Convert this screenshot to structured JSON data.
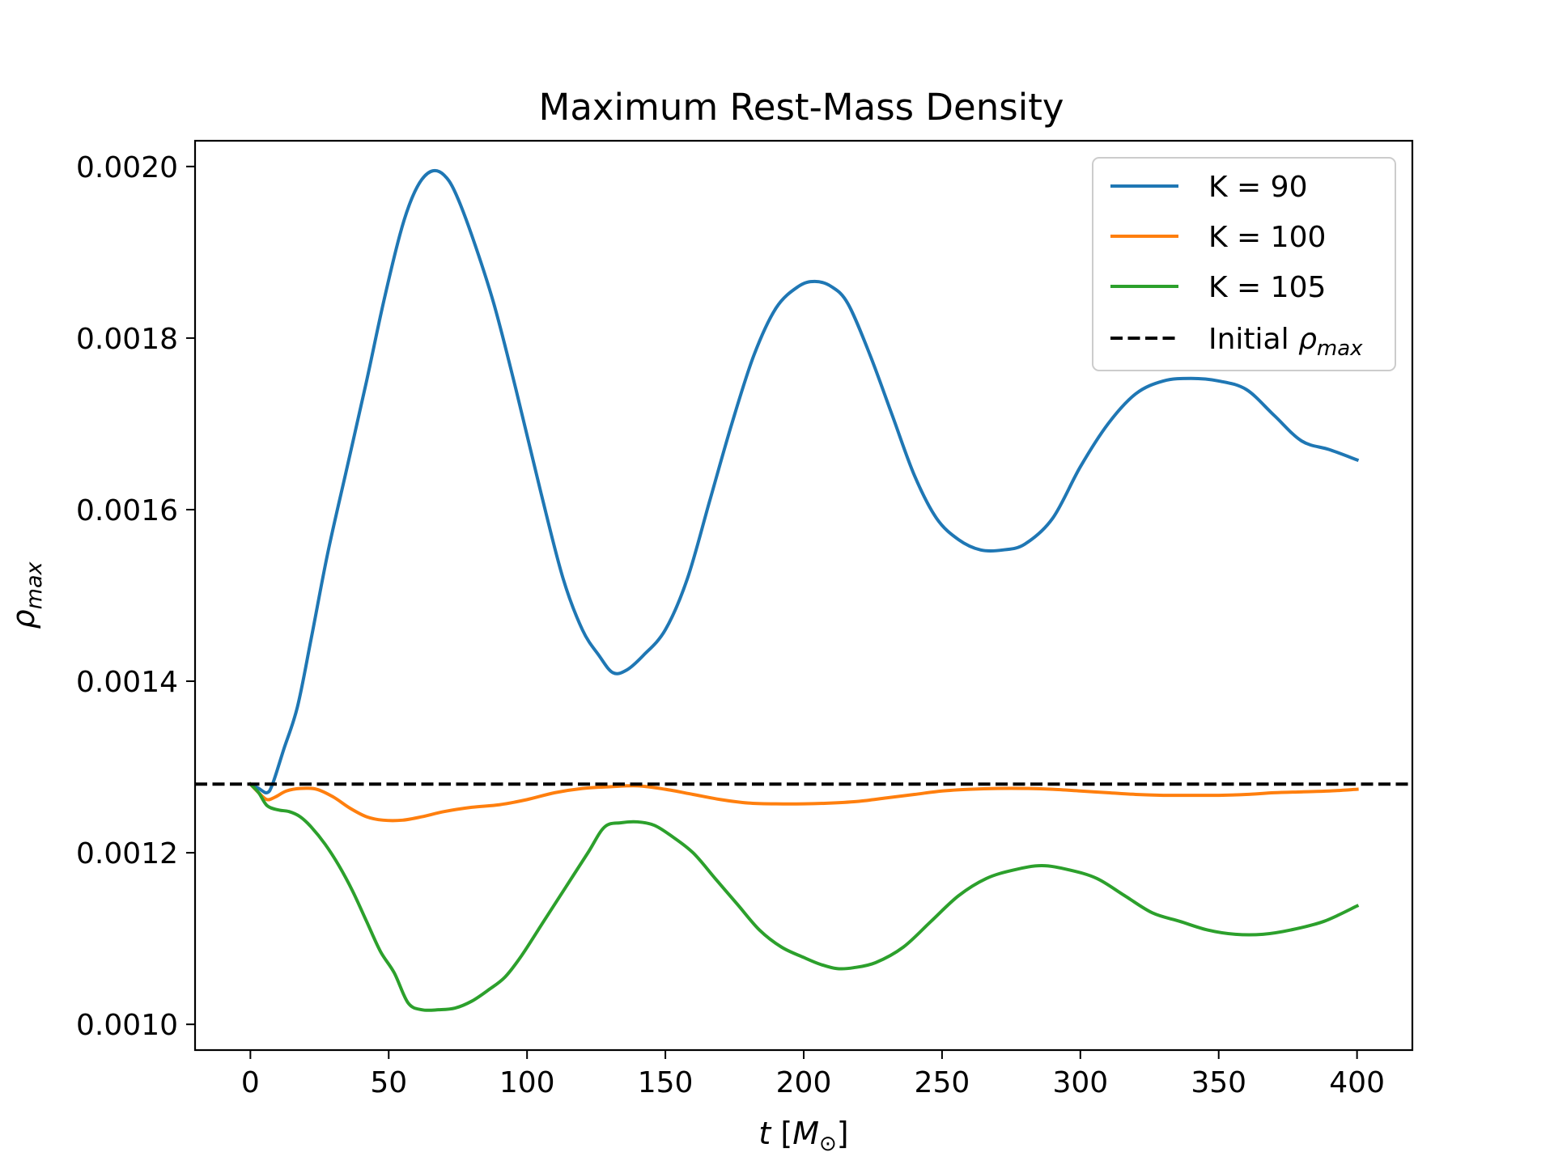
{
  "chart_data": {
    "type": "line",
    "title": "Maximum Rest-Mass Density",
    "xlabel": {
      "main": "t",
      "unit_open": " [",
      "unit_symbol": "M",
      "unit_sub": "⊙",
      "unit_close": "]"
    },
    "ylabel": {
      "symbol": "ρ",
      "subscript": "max"
    },
    "xlim": [
      -20,
      420
    ],
    "ylim": [
      0.00097,
      0.00203
    ],
    "x_ticks": [
      0,
      50,
      100,
      150,
      200,
      250,
      300,
      350,
      400
    ],
    "x_tick_labels": [
      "0",
      "50",
      "100",
      "150",
      "200",
      "250",
      "300",
      "350",
      "400"
    ],
    "y_ticks": [
      0.001,
      0.0012,
      0.0014,
      0.0016,
      0.0018,
      0.002
    ],
    "y_tick_labels": [
      "0.0010",
      "0.0012",
      "0.0014",
      "0.0016",
      "0.0018",
      "0.0020"
    ],
    "grid": false,
    "legend_position": "top-right",
    "series": [
      {
        "name": "K = 90",
        "color": "#1f77b4",
        "style": "solid",
        "points": [
          [
            0,
            0.00128
          ],
          [
            3,
            0.001275
          ],
          [
            6,
            0.00127
          ],
          [
            8,
            0.00128
          ],
          [
            12,
            0.00132
          ],
          [
            17,
            0.00137
          ],
          [
            22,
            0.00145
          ],
          [
            28,
            0.00155
          ],
          [
            35,
            0.00165
          ],
          [
            42,
            0.00175
          ],
          [
            48,
            0.00184
          ],
          [
            54,
            0.00192
          ],
          [
            58,
            0.00196
          ],
          [
            62,
            0.001985
          ],
          [
            66,
            0.001995
          ],
          [
            70,
            0.00199
          ],
          [
            74,
            0.00197
          ],
          [
            80,
            0.00192
          ],
          [
            88,
            0.00184
          ],
          [
            96,
            0.00174
          ],
          [
            105,
            0.00162
          ],
          [
            113,
            0.00152
          ],
          [
            120,
            0.00146
          ],
          [
            126,
            0.00143
          ],
          [
            131,
            0.00141
          ],
          [
            136,
            0.001413
          ],
          [
            142,
            0.00143
          ],
          [
            150,
            0.00146
          ],
          [
            158,
            0.00152
          ],
          [
            166,
            0.00161
          ],
          [
            174,
            0.0017
          ],
          [
            182,
            0.00178
          ],
          [
            190,
            0.001835
          ],
          [
            198,
            0.00186
          ],
          [
            204,
            0.001866
          ],
          [
            210,
            0.00186
          ],
          [
            216,
            0.00184
          ],
          [
            224,
            0.00178
          ],
          [
            232,
            0.00171
          ],
          [
            240,
            0.00164
          ],
          [
            248,
            0.00159
          ],
          [
            256,
            0.001565
          ],
          [
            264,
            0.001553
          ],
          [
            272,
            0.001553
          ],
          [
            280,
            0.00156
          ],
          [
            290,
            0.00159
          ],
          [
            300,
            0.00165
          ],
          [
            310,
            0.0017
          ],
          [
            320,
            0.001735
          ],
          [
            330,
            0.00175
          ],
          [
            340,
            0.001753
          ],
          [
            350,
            0.00175
          ],
          [
            360,
            0.00174
          ],
          [
            370,
            0.00171
          ],
          [
            380,
            0.00168
          ],
          [
            390,
            0.00167
          ],
          [
            400,
            0.001658
          ]
        ]
      },
      {
        "name": "K = 100",
        "color": "#ff7f0e",
        "style": "solid",
        "points": [
          [
            0,
            0.00128
          ],
          [
            3,
            0.00127
          ],
          [
            6,
            0.001262
          ],
          [
            9,
            0.001265
          ],
          [
            13,
            0.001272
          ],
          [
            18,
            0.001275
          ],
          [
            24,
            0.001274
          ],
          [
            30,
            0.001265
          ],
          [
            36,
            0.001252
          ],
          [
            42,
            0.001242
          ],
          [
            48,
            0.001238
          ],
          [
            55,
            0.001238
          ],
          [
            62,
            0.001242
          ],
          [
            70,
            0.001248
          ],
          [
            80,
            0.001253
          ],
          [
            90,
            0.001256
          ],
          [
            100,
            0.001262
          ],
          [
            110,
            0.00127
          ],
          [
            120,
            0.001275
          ],
          [
            130,
            0.001277
          ],
          [
            140,
            0.001278
          ],
          [
            150,
            0.001274
          ],
          [
            160,
            0.001268
          ],
          [
            170,
            0.001262
          ],
          [
            180,
            0.001258
          ],
          [
            190,
            0.001257
          ],
          [
            200,
            0.001257
          ],
          [
            210,
            0.001258
          ],
          [
            220,
            0.00126
          ],
          [
            230,
            0.001264
          ],
          [
            240,
            0.001268
          ],
          [
            250,
            0.001272
          ],
          [
            260,
            0.001274
          ],
          [
            270,
            0.001275
          ],
          [
            280,
            0.001275
          ],
          [
            290,
            0.001274
          ],
          [
            300,
            0.001272
          ],
          [
            310,
            0.00127
          ],
          [
            320,
            0.001268
          ],
          [
            330,
            0.001267
          ],
          [
            340,
            0.001267
          ],
          [
            350,
            0.001267
          ],
          [
            360,
            0.001268
          ],
          [
            370,
            0.00127
          ],
          [
            380,
            0.001271
          ],
          [
            390,
            0.001272
          ],
          [
            400,
            0.001274
          ]
        ]
      },
      {
        "name": "K = 105",
        "color": "#2ca02c",
        "style": "solid",
        "points": [
          [
            0,
            0.00128
          ],
          [
            3,
            0.00127
          ],
          [
            6,
            0.001255
          ],
          [
            10,
            0.00125
          ],
          [
            14,
            0.001248
          ],
          [
            18,
            0.001242
          ],
          [
            22,
            0.00123
          ],
          [
            27,
            0.00121
          ],
          [
            32,
            0.001185
          ],
          [
            37,
            0.001155
          ],
          [
            42,
            0.00112
          ],
          [
            47,
            0.001085
          ],
          [
            52,
            0.00106
          ],
          [
            57,
            0.001025
          ],
          [
            62,
            0.001017
          ],
          [
            68,
            0.001017
          ],
          [
            74,
            0.001019
          ],
          [
            80,
            0.001027
          ],
          [
            86,
            0.00104
          ],
          [
            92,
            0.001055
          ],
          [
            98,
            0.00108
          ],
          [
            106,
            0.00112
          ],
          [
            114,
            0.00116
          ],
          [
            122,
            0.0012
          ],
          [
            128,
            0.00123
          ],
          [
            134,
            0.001235
          ],
          [
            140,
            0.001236
          ],
          [
            146,
            0.001232
          ],
          [
            152,
            0.00122
          ],
          [
            160,
            0.0012
          ],
          [
            168,
            0.00117
          ],
          [
            176,
            0.00114
          ],
          [
            184,
            0.00111
          ],
          [
            192,
            0.00109
          ],
          [
            200,
            0.001078
          ],
          [
            206,
            0.00107
          ],
          [
            212,
            0.001065
          ],
          [
            218,
            0.001066
          ],
          [
            226,
            0.001072
          ],
          [
            236,
            0.00109
          ],
          [
            246,
            0.00112
          ],
          [
            256,
            0.00115
          ],
          [
            266,
            0.00117
          ],
          [
            276,
            0.00118
          ],
          [
            286,
            0.001185
          ],
          [
            296,
            0.00118
          ],
          [
            306,
            0.00117
          ],
          [
            316,
            0.00115
          ],
          [
            326,
            0.00113
          ],
          [
            336,
            0.00112
          ],
          [
            346,
            0.00111
          ],
          [
            356,
            0.001105
          ],
          [
            366,
            0.001105
          ],
          [
            376,
            0.00111
          ],
          [
            388,
            0.00112
          ],
          [
            400,
            0.001138
          ]
        ]
      },
      {
        "name": "Initial ρmax",
        "legend_label": "Initial ",
        "legend_symbol": "ρ",
        "legend_sub": "max",
        "color": "#000000",
        "style": "dashed",
        "y_constant": 0.00128
      }
    ]
  }
}
